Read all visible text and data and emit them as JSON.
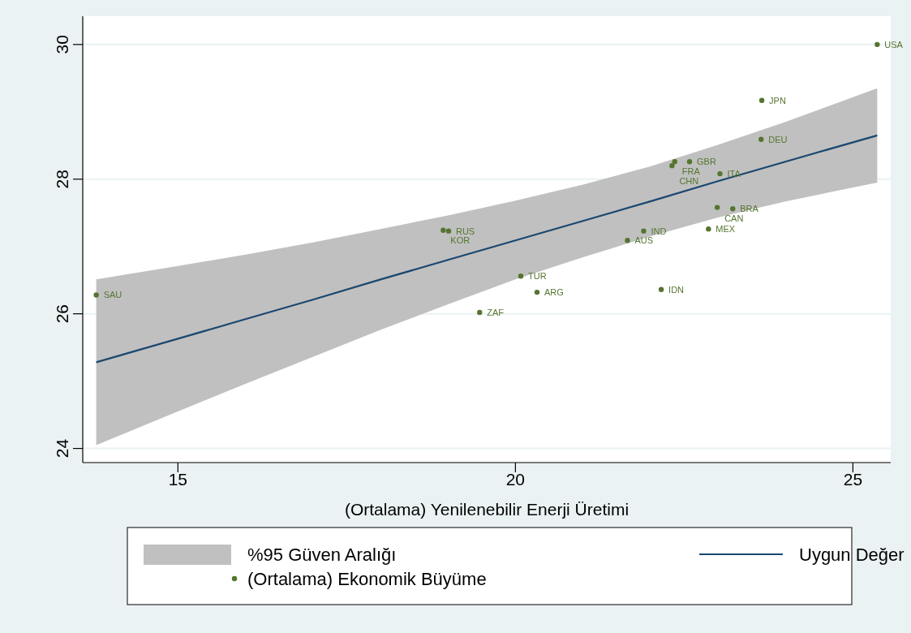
{
  "chart_data": {
    "type": "scatter",
    "xlabel": "(Ortalama) Yenilenebilir Enerji Üretimi",
    "xlim": [
      13.59,
      25.56
    ],
    "xticks": [
      15,
      20,
      25
    ],
    "ylim": [
      23.79,
      30.42
    ],
    "yticks": [
      24,
      26,
      28,
      30
    ],
    "grid": "y",
    "legend": "bottom",
    "marker": "circle",
    "series": [
      {
        "name": "%95 Güven Aralığı",
        "type": "area",
        "color": "#c0c0c0"
      },
      {
        "name": "Uygun Değer",
        "type": "line",
        "color": "#1a476f",
        "marker": "none",
        "x": [
          13.79,
          15,
          16,
          17,
          18,
          19,
          20,
          21,
          22,
          23,
          24,
          25.36
        ],
        "values": [
          25.28,
          25.63,
          25.92,
          26.21,
          26.51,
          26.8,
          27.09,
          27.38,
          27.67,
          27.97,
          28.26,
          28.65
        ],
        "lower": [
          24.05,
          24.55,
          24.96,
          25.36,
          25.76,
          26.14,
          26.51,
          26.84,
          27.15,
          27.43,
          27.67,
          27.95
        ],
        "upper": [
          26.51,
          26.71,
          26.88,
          27.06,
          27.26,
          27.46,
          27.68,
          27.92,
          28.19,
          28.51,
          28.85,
          29.35
        ]
      },
      {
        "name": "(Ortalama) Ekonomik Büyüme",
        "color": "#55752f",
        "x": [
          25.36,
          23.65,
          23.64,
          22.36,
          22.58,
          22.32,
          23.03,
          22.99,
          23.22,
          22.86,
          21.9,
          21.66,
          18.93,
          19.01,
          20.08,
          20.32,
          22.16,
          19.47,
          13.79
        ],
        "values": [
          30.0,
          29.17,
          28.59,
          28.26,
          28.26,
          28.2,
          28.08,
          27.58,
          27.56,
          27.26,
          27.23,
          27.09,
          27.24,
          27.23,
          26.56,
          26.32,
          26.36,
          26.02,
          26.28
        ]
      }
    ],
    "annotations": [
      {
        "text": "USA",
        "x": 25.36,
        "y": 30.0
      },
      {
        "text": "JPN",
        "x": 23.65,
        "y": 29.17
      },
      {
        "text": "DEU",
        "x": 23.64,
        "y": 28.59
      },
      {
        "text": "FRA",
        "x": 22.36,
        "y": 28.26
      },
      {
        "text": "GBR",
        "x": 22.58,
        "y": 28.26
      },
      {
        "text": "CHN",
        "x": 22.32,
        "y": 28.2
      },
      {
        "text": "ITA",
        "x": 23.03,
        "y": 28.08
      },
      {
        "text": "CAN",
        "x": 22.99,
        "y": 27.58
      },
      {
        "text": "BRA",
        "x": 23.22,
        "y": 27.56
      },
      {
        "text": "MEX",
        "x": 22.86,
        "y": 27.26
      },
      {
        "text": "IND",
        "x": 21.9,
        "y": 27.23
      },
      {
        "text": "AUS",
        "x": 21.66,
        "y": 27.09
      },
      {
        "text": "KOR",
        "x": 18.93,
        "y": 27.24
      },
      {
        "text": "RUS",
        "x": 19.01,
        "y": 27.23
      },
      {
        "text": "TUR",
        "x": 20.08,
        "y": 26.56
      },
      {
        "text": "ARG",
        "x": 20.32,
        "y": 26.32
      },
      {
        "text": "IDN",
        "x": 22.16,
        "y": 26.36
      },
      {
        "text": "ZAF",
        "x": 19.47,
        "y": 26.02
      },
      {
        "text": "SAU",
        "x": 13.79,
        "y": 26.28
      }
    ]
  }
}
